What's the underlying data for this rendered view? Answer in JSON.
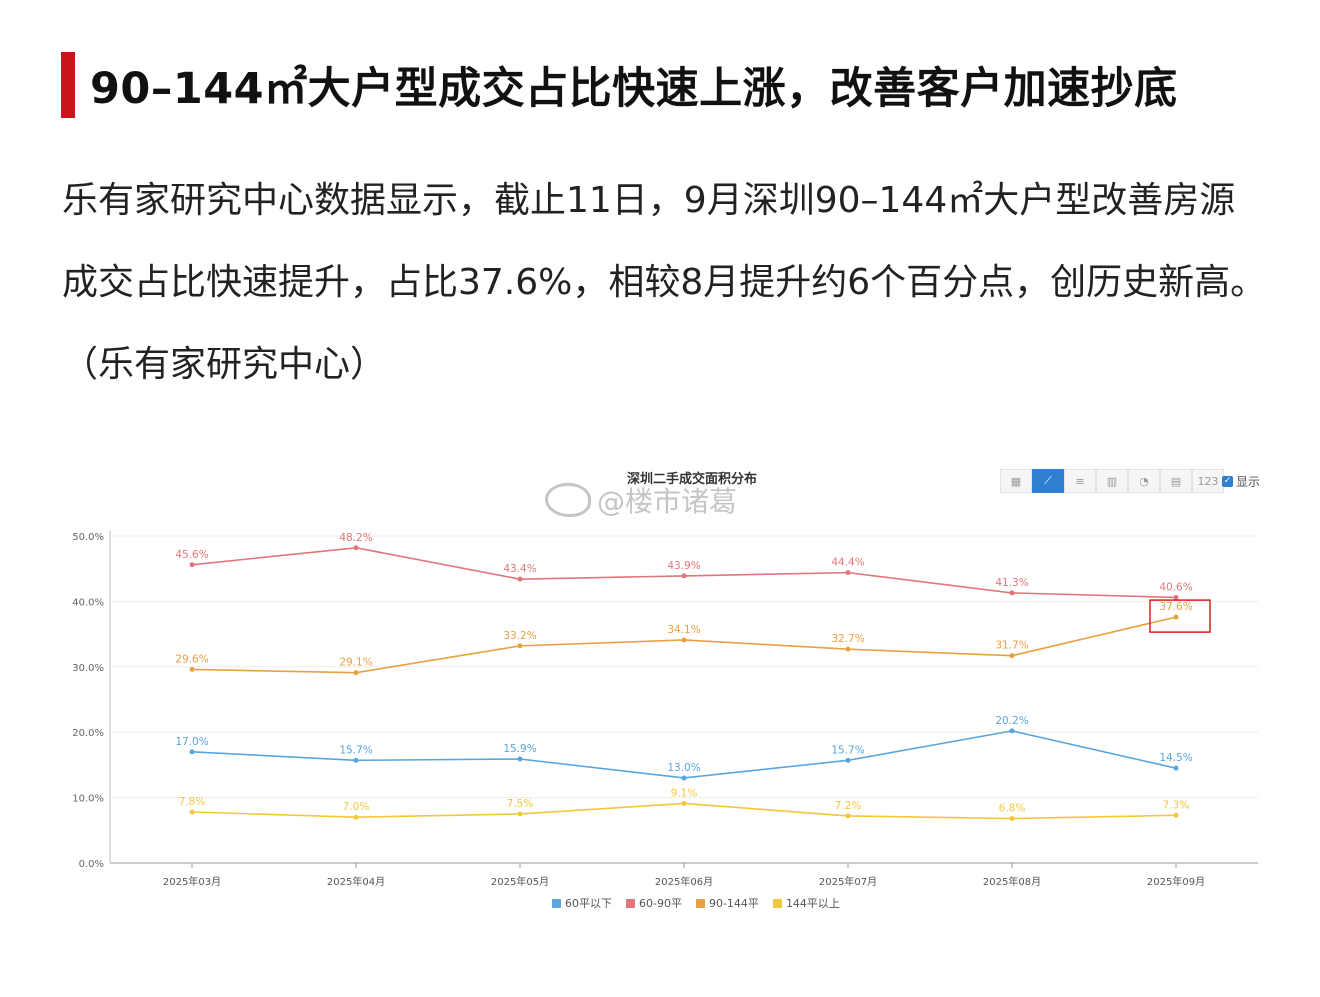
{
  "headline": "90–144㎡大户型成交占比快速上涨，改善客户加速抄底",
  "paragraph": "乐有家研究中心数据显示，截止11日，9月深圳90–144㎡大户型改善房源成交占比快速提升，占比37.6%，相较8月提升约6个百分点，创历史新高。（乐有家研究中心）",
  "watermark": "@楼市诸葛",
  "toolbar": {
    "icons": [
      "table-icon",
      "line-chart-icon",
      "bar-horizontal-icon",
      "bar-vertical-icon",
      "pie-icon",
      "stacked-bar-icon",
      "number-icon"
    ],
    "number_label": "123",
    "show_label": "显示"
  },
  "chart_data": {
    "type": "line",
    "title": "深圳二手成交面积分布",
    "categories": [
      "2025年03月",
      "2025年04月",
      "2025年05月",
      "2025年06月",
      "2025年07月",
      "2025年08月",
      "2025年09月"
    ],
    "y_ticks": [
      "0.0%",
      "10.0%",
      "20.0%",
      "30.0%",
      "40.0%",
      "50.0%"
    ],
    "ylim": [
      0,
      50
    ],
    "grid": true,
    "legend_position": "bottom",
    "series": [
      {
        "name": "60平以下",
        "color": "#5aa6dc",
        "values": [
          17.0,
          15.7,
          15.9,
          13.0,
          15.7,
          20.2,
          14.5
        ],
        "labels": [
          "17.0%",
          "15.7%",
          "15.9%",
          "13.0%",
          "15.7%",
          "20.2%",
          "14.5%"
        ]
      },
      {
        "name": "60-90平",
        "color": "#e0767b",
        "values": [
          45.6,
          48.2,
          43.4,
          43.9,
          44.4,
          41.3,
          40.6
        ],
        "labels": [
          "45.6%",
          "48.2%",
          "43.4%",
          "43.9%",
          "44.4%",
          "41.3%",
          "40.6%"
        ]
      },
      {
        "name": "90-144平",
        "color": "#e8a040",
        "values": [
          29.6,
          29.1,
          33.2,
          34.1,
          32.7,
          31.7,
          37.6
        ],
        "labels": [
          "29.6%",
          "29.1%",
          "33.2%",
          "34.1%",
          "32.7%",
          "31.7%",
          "37.6%"
        ]
      },
      {
        "name": "144平以上",
        "color": "#f2c83a",
        "values": [
          7.8,
          7.0,
          7.5,
          9.1,
          7.2,
          6.8,
          7.3
        ],
        "labels": [
          "7.8%",
          "7.0%",
          "7.5%",
          "9.1%",
          "7.2%",
          "6.8%",
          "7.3%"
        ]
      }
    ],
    "highlight": {
      "series": "90-144平",
      "category": "2025年09月",
      "color": "#d42020"
    }
  }
}
